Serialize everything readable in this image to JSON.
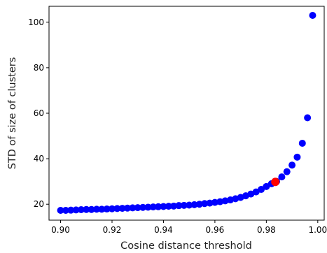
{
  "chart_data": {
    "type": "scatter",
    "title": "",
    "xlabel": "Cosine distance threshold",
    "ylabel": "STD of size of clusters",
    "xlim": [
      0.8955,
      1.0025
    ],
    "ylim": [
      13,
      107
    ],
    "x_ticks": [
      0.9,
      0.92,
      0.94,
      0.96,
      0.98,
      1.0
    ],
    "x_tick_labels": [
      "0.90",
      "0.92",
      "0.94",
      "0.96",
      "0.98",
      "1.00"
    ],
    "y_ticks": [
      20,
      40,
      60,
      80,
      100
    ],
    "y_tick_labels": [
      "20",
      "40",
      "60",
      "80",
      "100"
    ],
    "grid": false,
    "series": [
      {
        "color": "#0000ff",
        "x": [
          0.9,
          0.902,
          0.904,
          0.906,
          0.908,
          0.91,
          0.912,
          0.914,
          0.916,
          0.918,
          0.92,
          0.922,
          0.924,
          0.926,
          0.928,
          0.93,
          0.932,
          0.934,
          0.936,
          0.938,
          0.94,
          0.942,
          0.944,
          0.946,
          0.948,
          0.95,
          0.952,
          0.954,
          0.956,
          0.958,
          0.96,
          0.962,
          0.964,
          0.966,
          0.968,
          0.97,
          0.972,
          0.974,
          0.976,
          0.978,
          0.98,
          0.982,
          0.984,
          0.986,
          0.988,
          0.99,
          0.992,
          0.994,
          0.996,
          0.998
        ],
        "y": [
          17.3,
          17.3,
          17.4,
          17.5,
          17.6,
          17.7,
          17.7,
          17.8,
          17.8,
          17.9,
          18.0,
          18.1,
          18.2,
          18.3,
          18.4,
          18.5,
          18.6,
          18.7,
          18.8,
          18.9,
          19.0,
          19.1,
          19.2,
          19.4,
          19.5,
          19.6,
          19.8,
          20.0,
          20.3,
          20.5,
          20.8,
          21.1,
          21.5,
          21.9,
          22.4,
          23.0,
          23.7,
          24.5,
          25.4,
          26.5,
          27.8,
          29.0,
          30.0,
          32.0,
          34.3,
          37.2,
          40.7,
          46.8,
          58.0,
          103.0
        ]
      },
      {
        "color": "#ff0000",
        "x": [
          0.9835
        ],
        "y": [
          29.8
        ]
      }
    ]
  }
}
